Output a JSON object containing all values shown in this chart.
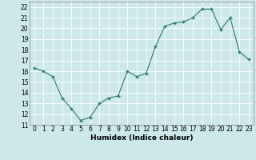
{
  "x_values": [
    0,
    1,
    2,
    3,
    4,
    5,
    6,
    7,
    8,
    9,
    10,
    11,
    12,
    13,
    14,
    15,
    16,
    17,
    18,
    19,
    20,
    21,
    22,
    23
  ],
  "y_values": [
    16.3,
    16.0,
    15.5,
    13.5,
    12.5,
    11.4,
    11.7,
    13.0,
    13.5,
    13.7,
    16.0,
    15.5,
    15.8,
    18.3,
    20.2,
    20.5,
    20.6,
    21.0,
    21.8,
    21.8,
    19.9,
    21.0,
    17.8,
    17.1
  ],
  "xlabel": "Humidex (Indice chaleur)",
  "ylabel": "",
  "xlim": [
    -0.5,
    23.5
  ],
  "ylim": [
    11,
    22.5
  ],
  "yticks": [
    11,
    12,
    13,
    14,
    15,
    16,
    17,
    18,
    19,
    20,
    21,
    22
  ],
  "xticks": [
    0,
    1,
    2,
    3,
    4,
    5,
    6,
    7,
    8,
    9,
    10,
    11,
    12,
    13,
    14,
    15,
    16,
    17,
    18,
    19,
    20,
    21,
    22,
    23
  ],
  "line_color": "#2d7d6e",
  "marker_color": "#2d7d6e",
  "bg_color": "#cde8e8",
  "grid_color": "#ffffff",
  "tick_label_fontsize": 5.5,
  "xlabel_fontsize": 6.5
}
